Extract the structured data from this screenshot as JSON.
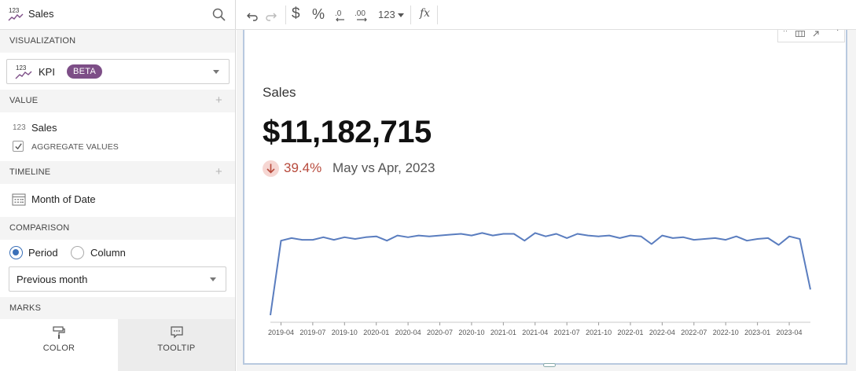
{
  "workbook": {
    "title": "Sales",
    "icon": "kpi-chart-icon"
  },
  "panel": {
    "visualization": {
      "header": "VISUALIZATION",
      "type_label": "KPI",
      "badge": "BETA",
      "badge_color": "#7d4e87"
    },
    "value": {
      "header": "VALUE",
      "field_type": "123",
      "field_name": "Sales",
      "aggregate_label": "AGGREGATE VALUES",
      "aggregate_checked": true
    },
    "timeline": {
      "header": "TIMELINE",
      "field_name": "Month of Date"
    },
    "comparison": {
      "header": "COMPARISON",
      "options": [
        "Period",
        "Column"
      ],
      "selected": "Period",
      "dropdown_value": "Previous month"
    },
    "marks": {
      "header": "MARKS",
      "tabs": [
        "COLOR",
        "TOOLTIP"
      ]
    }
  },
  "toolbar": {
    "currency": "$",
    "percent": "%",
    "number_format": "123",
    "formula": "fx"
  },
  "kpi": {
    "title": "Sales",
    "value": "$11,182,715",
    "delta_pct": "39.4%",
    "delta_direction": "down",
    "comparison_text": "May vs Apr, 2023",
    "accent_color": "#b74a3c",
    "line_color": "#5a7dbf"
  },
  "chart_data": {
    "type": "line",
    "title": "",
    "xlabel": "",
    "ylabel": "",
    "x_tick_labels": [
      "2019-04",
      "2019-07",
      "2019-10",
      "2020-01",
      "2020-04",
      "2020-07",
      "2020-10",
      "2021-01",
      "2021-04",
      "2021-07",
      "2021-10",
      "2022-01",
      "2022-04",
      "2022-07",
      "2022-10",
      "2023-01",
      "2023-04"
    ],
    "ylim": [
      0,
      1
    ],
    "grid": false,
    "series": [
      {
        "values": [
          0.0,
          0.87,
          0.9,
          0.88,
          0.88,
          0.91,
          0.88,
          0.91,
          0.89,
          0.91,
          0.92,
          0.87,
          0.93,
          0.91,
          0.93,
          0.92,
          0.93,
          0.94,
          0.95,
          0.93,
          0.96,
          0.93,
          0.95,
          0.95,
          0.87,
          0.96,
          0.92,
          0.95,
          0.9,
          0.95,
          0.93,
          0.92,
          0.93,
          0.9,
          0.93,
          0.92,
          0.83,
          0.93,
          0.9,
          0.91,
          0.88,
          0.89,
          0.9,
          0.88,
          0.92,
          0.87,
          0.89,
          0.9,
          0.82,
          0.92,
          0.89,
          0.3
        ]
      }
    ]
  }
}
